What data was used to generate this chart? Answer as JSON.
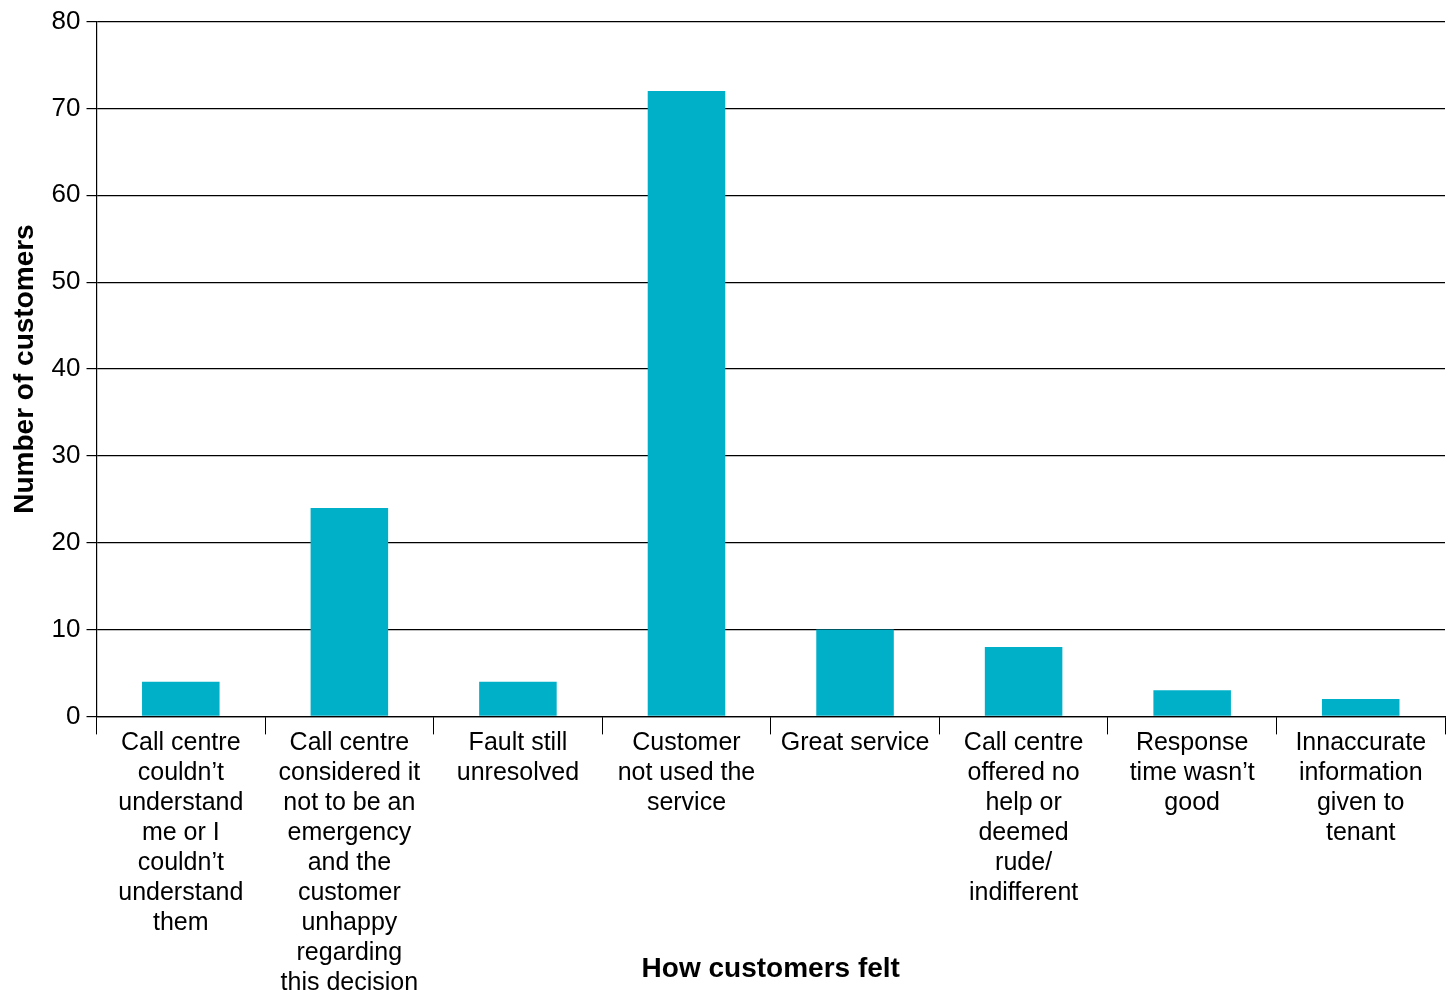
{
  "chart_data": {
    "type": "bar",
    "xlabel": "How customers felt",
    "ylabel": "Number of customers",
    "categories": [
      "Call centre couldn’t understand me or I couldn’t understand them",
      "Call centre considered it not to be an emergency and the customer unhappy regarding this decision",
      "Fault still unresolved",
      "Customer not used the service",
      "Great service",
      "Call centre offered no help or deemed rude/ indifferent",
      "Response time wasn’t good",
      "Innaccurate information given to tenant"
    ],
    "values": [
      4,
      24,
      4,
      72,
      10,
      8,
      3,
      2
    ],
    "color": "#00b0c8",
    "ylim": [
      0,
      80
    ],
    "yticks": [
      0,
      10,
      20,
      30,
      40,
      50,
      60,
      70,
      80
    ],
    "grid": "y",
    "legend": false
  }
}
